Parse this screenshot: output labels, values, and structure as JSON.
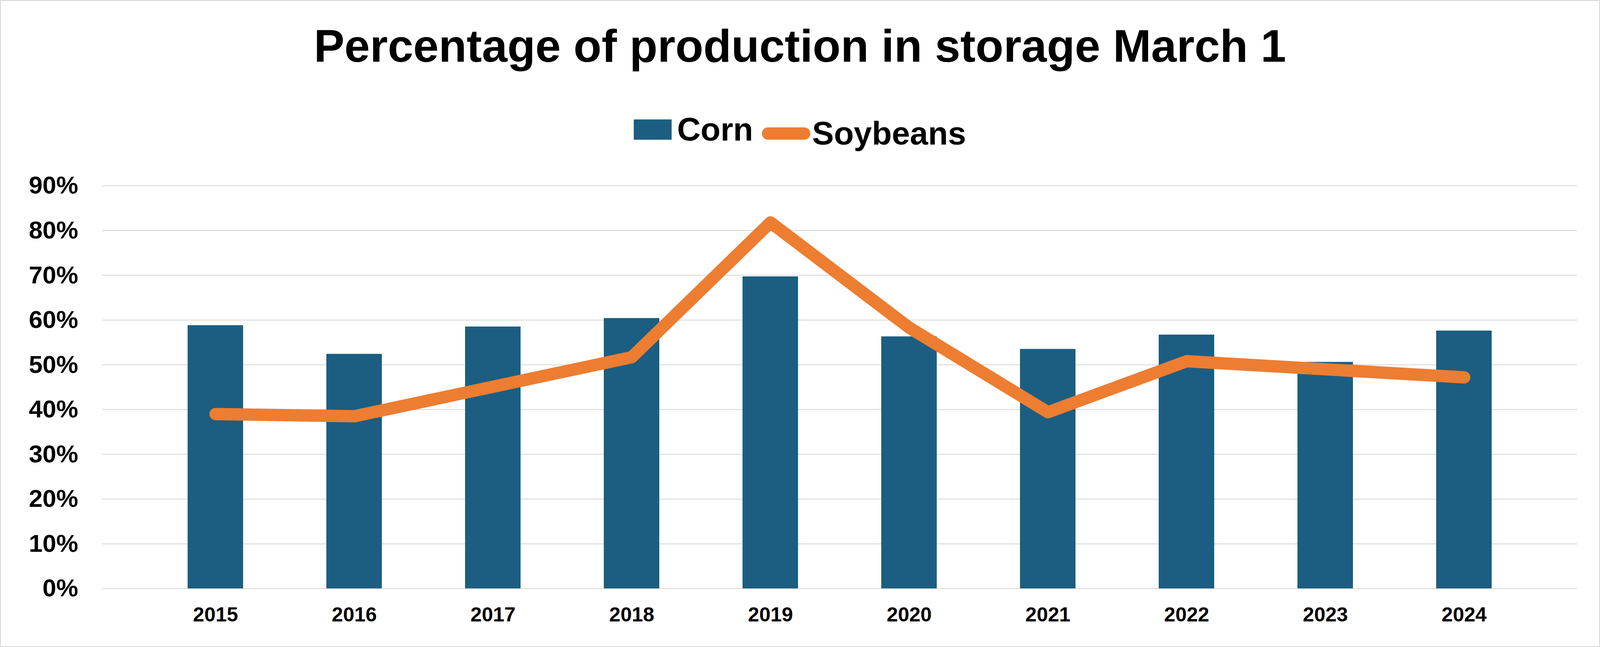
{
  "chart_data": {
    "type": "bar",
    "title": "Percentage of production in storage March 1",
    "categories": [
      "2015",
      "2016",
      "2017",
      "2018",
      "2019",
      "2020",
      "2021",
      "2022",
      "2023",
      "2024"
    ],
    "series": [
      {
        "name": "Corn",
        "type": "bar",
        "color": "#1B5E82",
        "values": [
          58.8,
          52.4,
          58.5,
          60.4,
          69.7,
          56.3,
          53.5,
          56.7,
          50.6,
          57.6
        ]
      },
      {
        "name": "Soybeans",
        "type": "line",
        "color": "#ED7D31",
        "values": [
          39.0,
          38.5,
          45.1,
          51.7,
          81.8,
          58.3,
          39.4,
          50.8,
          49.0,
          47.2
        ]
      }
    ],
    "ylim": [
      0,
      90
    ],
    "yticks": [
      {
        "value": 0,
        "label": "0%"
      },
      {
        "value": 10,
        "label": "10%"
      },
      {
        "value": 20,
        "label": "20%"
      },
      {
        "value": 30,
        "label": "30%"
      },
      {
        "value": 40,
        "label": "40%"
      },
      {
        "value": 50,
        "label": "50%"
      },
      {
        "value": 60,
        "label": "60%"
      },
      {
        "value": 70,
        "label": "70%"
      },
      {
        "value": 80,
        "label": "80%"
      },
      {
        "value": 90,
        "label": "90%"
      }
    ],
    "grid": true,
    "legend": "top"
  }
}
